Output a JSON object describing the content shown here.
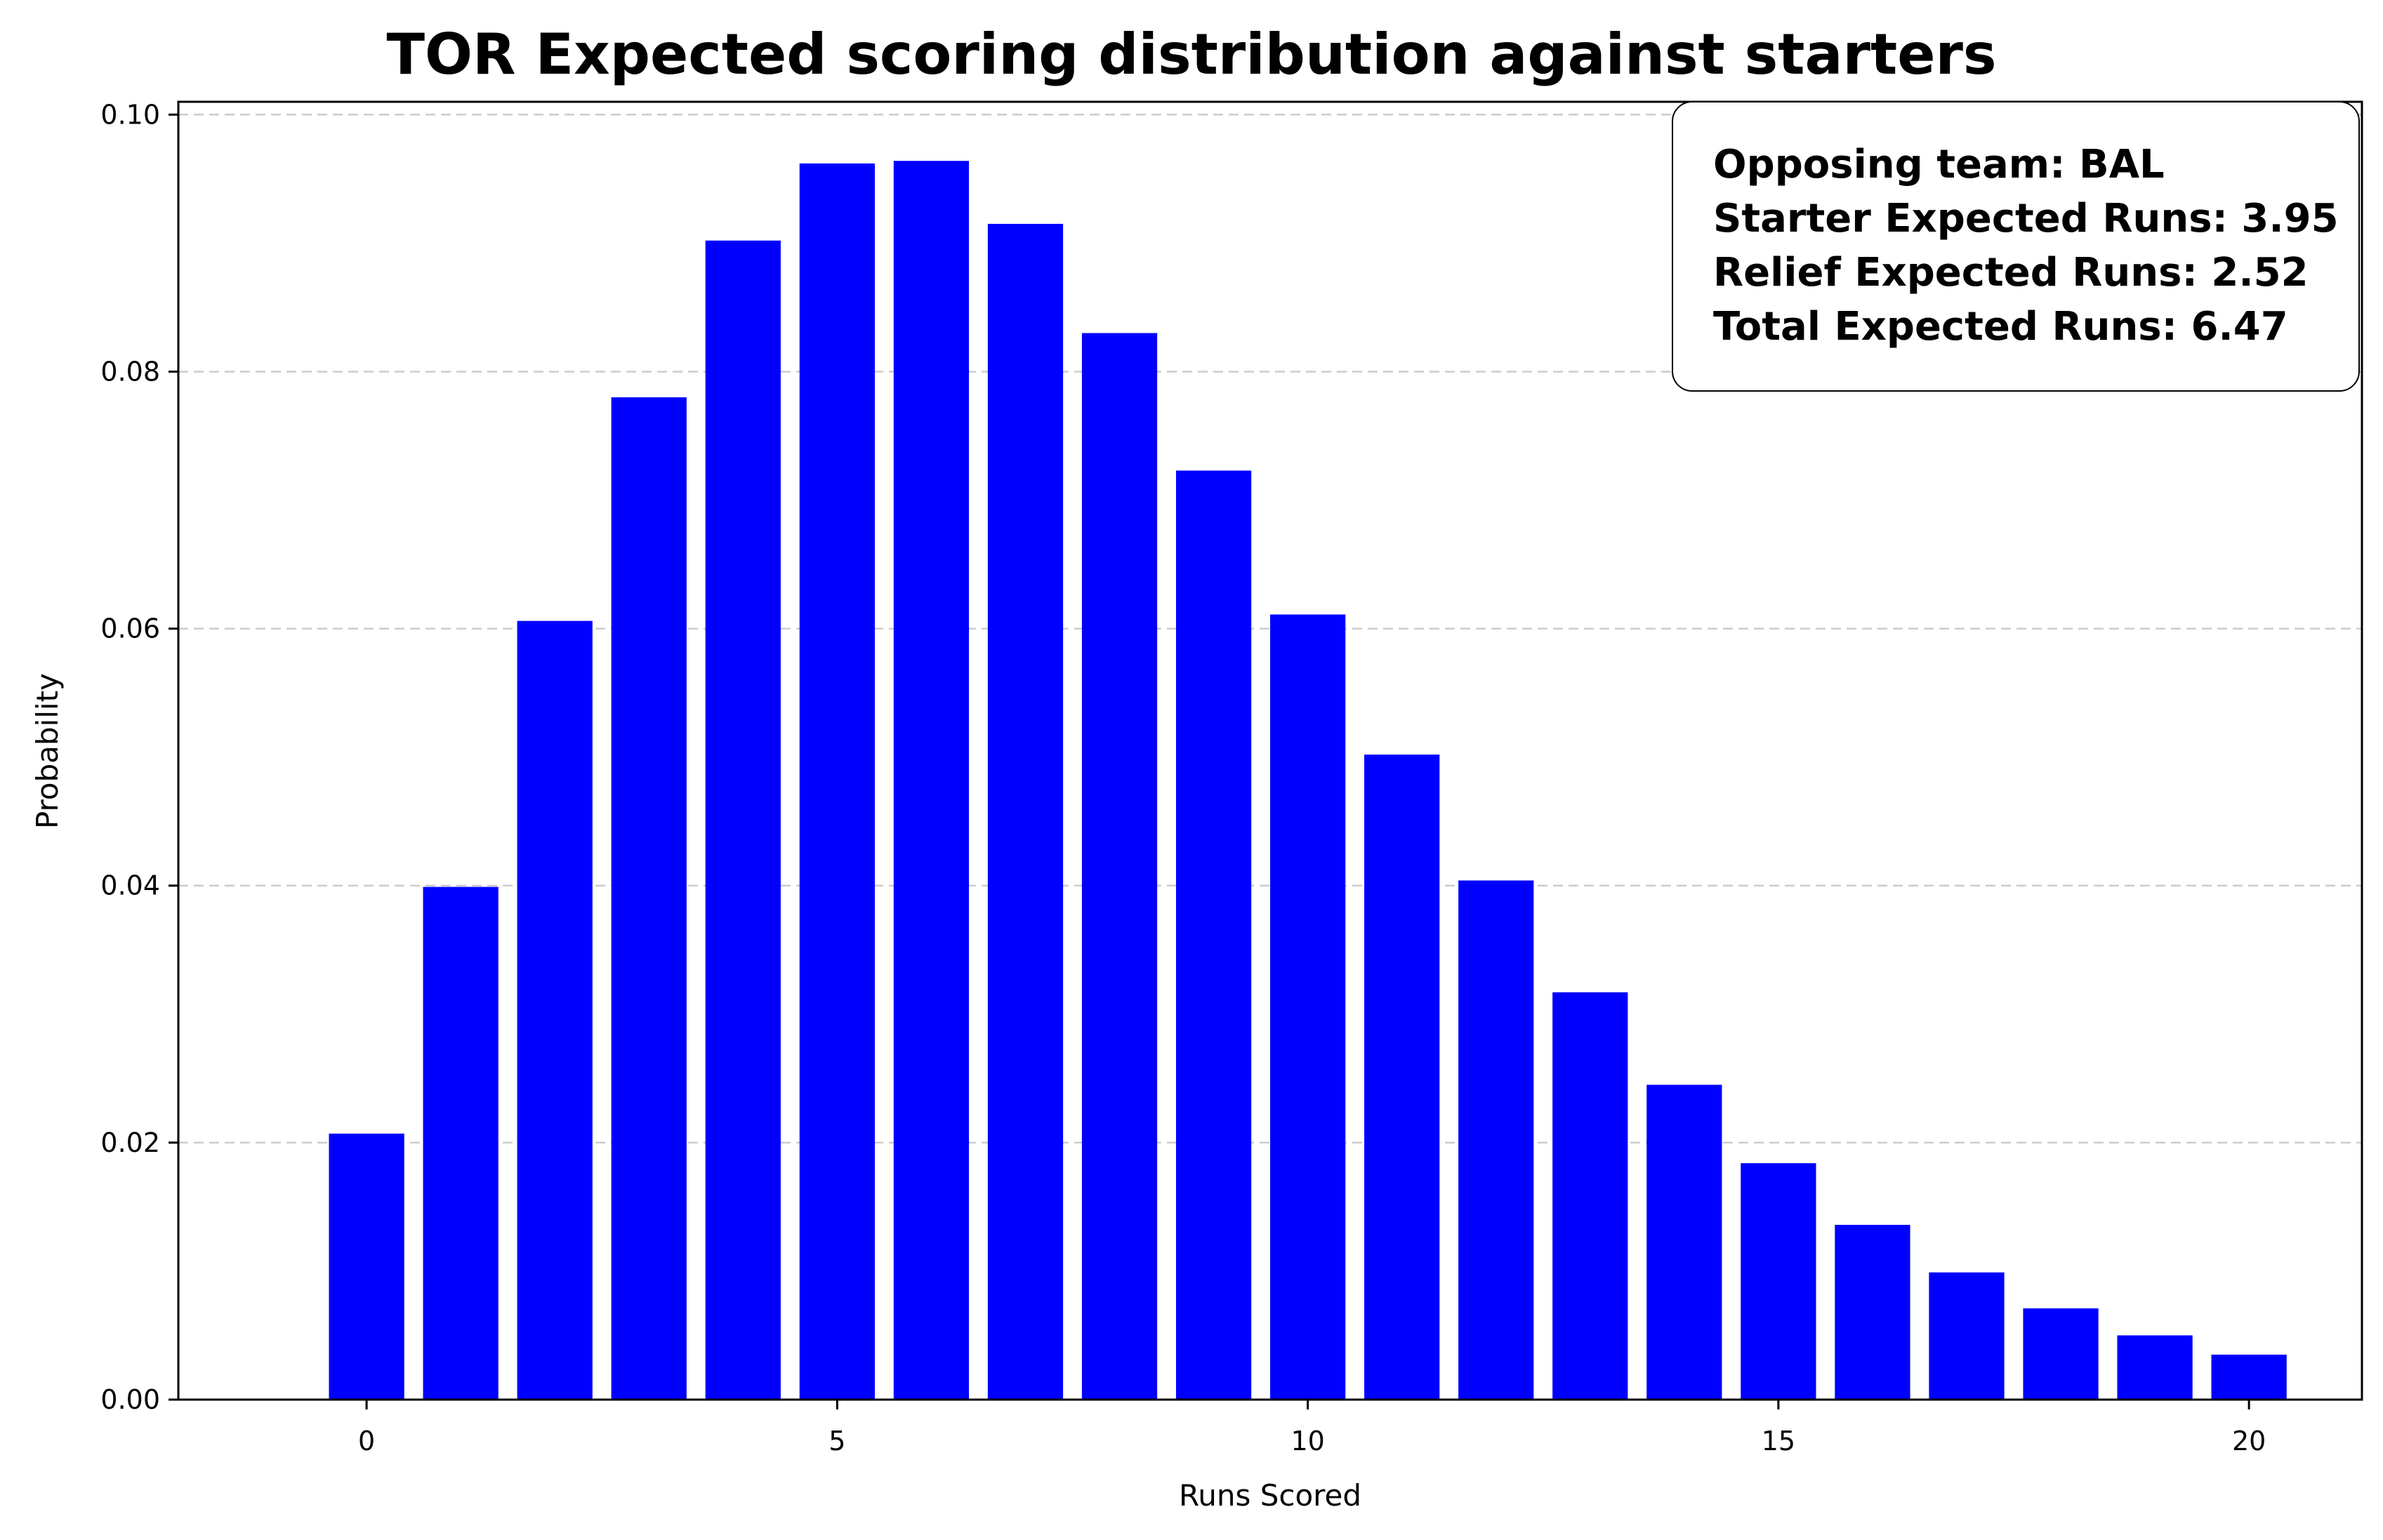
{
  "chart_data": {
    "type": "bar",
    "title": "TOR Expected scoring distribution against starters",
    "xlabel": "Runs Scored",
    "ylabel": "Probability",
    "x": [
      0,
      1,
      2,
      3,
      4,
      5,
      6,
      7,
      8,
      9,
      10,
      11,
      12,
      13,
      14,
      15,
      16,
      17,
      18,
      19,
      20
    ],
    "values": [
      0.0207,
      0.0399,
      0.0606,
      0.078,
      0.0902,
      0.0962,
      0.0964,
      0.0915,
      0.083,
      0.0723,
      0.0611,
      0.0502,
      0.0404,
      0.0317,
      0.0245,
      0.0184,
      0.0136,
      0.0099,
      0.0071,
      0.005,
      0.0035
    ],
    "xlim": [
      -2,
      21.2
    ],
    "ylim": [
      0,
      0.101
    ],
    "xticks": [
      0,
      5,
      10,
      15,
      20
    ],
    "xtick_labels": [
      "0",
      "5",
      "10",
      "15",
      "20"
    ],
    "yticks": [
      0.0,
      0.02,
      0.04,
      0.06,
      0.08,
      0.1
    ],
    "ytick_labels": [
      "0.00",
      "0.02",
      "0.04",
      "0.06",
      "0.08",
      "0.10"
    ],
    "grid": "y-dashed",
    "bar_color": "#0000ff",
    "grid_color": "#cccccc",
    "annotation_box": {
      "placement": "top-right",
      "lines": [
        "Opposing team: BAL",
        "Starter Expected Runs: 3.95",
        "Relief Expected Runs: 2.52",
        "Total Expected Runs: 6.47"
      ]
    }
  }
}
